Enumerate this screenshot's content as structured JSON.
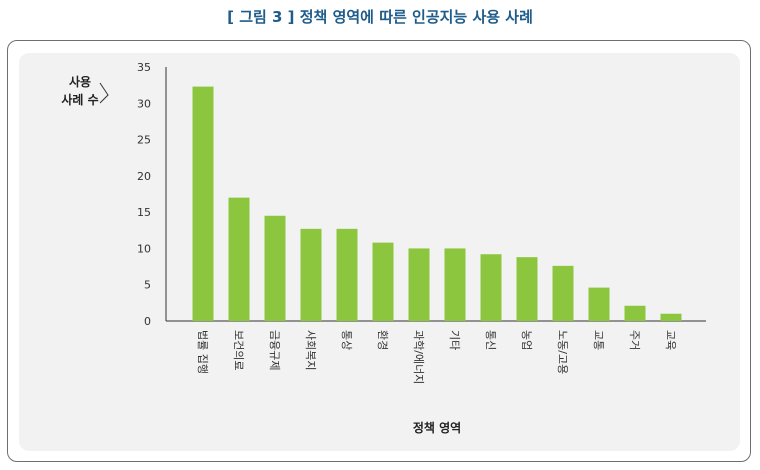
{
  "figure_title": "[ 그림 3 ] 정책 영역에 따른 인공지능 사용 사례",
  "chart_data": {
    "type": "bar",
    "title": "",
    "xlabel": "정책 영역",
    "ylabel_lines": [
      "사용",
      "사례 수"
    ],
    "ylim": [
      0,
      35
    ],
    "yticks": [
      0,
      5,
      10,
      15,
      20,
      25,
      30,
      35
    ],
    "grid": false,
    "bar_color": "#8cc63f",
    "categories": [
      "법률 집행",
      "보건의료",
      "금융규제",
      "사회복지",
      "통상",
      "환경",
      "과학/에너지",
      "기타",
      "통신",
      "농업",
      "노동/고용",
      "교통",
      "주거",
      "교육"
    ],
    "values": [
      32.3,
      17,
      14.5,
      12.7,
      12.7,
      10.8,
      10,
      10,
      9.2,
      8.8,
      7.6,
      4.6,
      2.1,
      1
    ]
  }
}
